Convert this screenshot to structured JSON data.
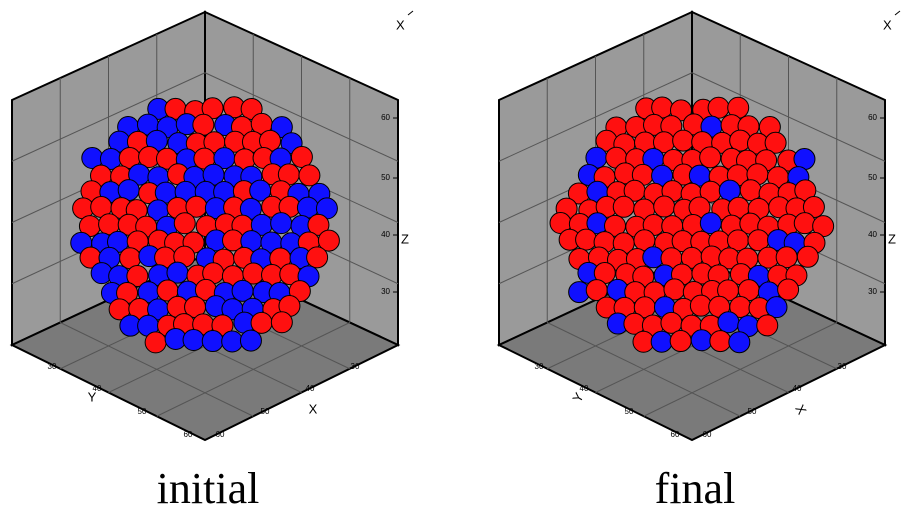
{
  "panels": [
    {
      "caption": "initial",
      "top_label": "X",
      "z_label": "Z",
      "x_label": "X",
      "y_label": "Y",
      "z_ticks": [
        "60",
        "50",
        "40",
        "30"
      ],
      "y_ticks": [
        "30",
        "40",
        "50",
        "60"
      ],
      "x_ticks": [
        "60",
        "50",
        "40",
        "30"
      ]
    },
    {
      "caption": "final",
      "top_label": "X",
      "z_label": "Z",
      "x_label": "X",
      "y_label": "Y",
      "z_ticks": [
        "60",
        "50",
        "40",
        "30"
      ],
      "y_ticks": [
        "30",
        "40",
        "50",
        "60"
      ],
      "x_ticks": [
        "60",
        "50",
        "40",
        "30"
      ]
    }
  ]
}
